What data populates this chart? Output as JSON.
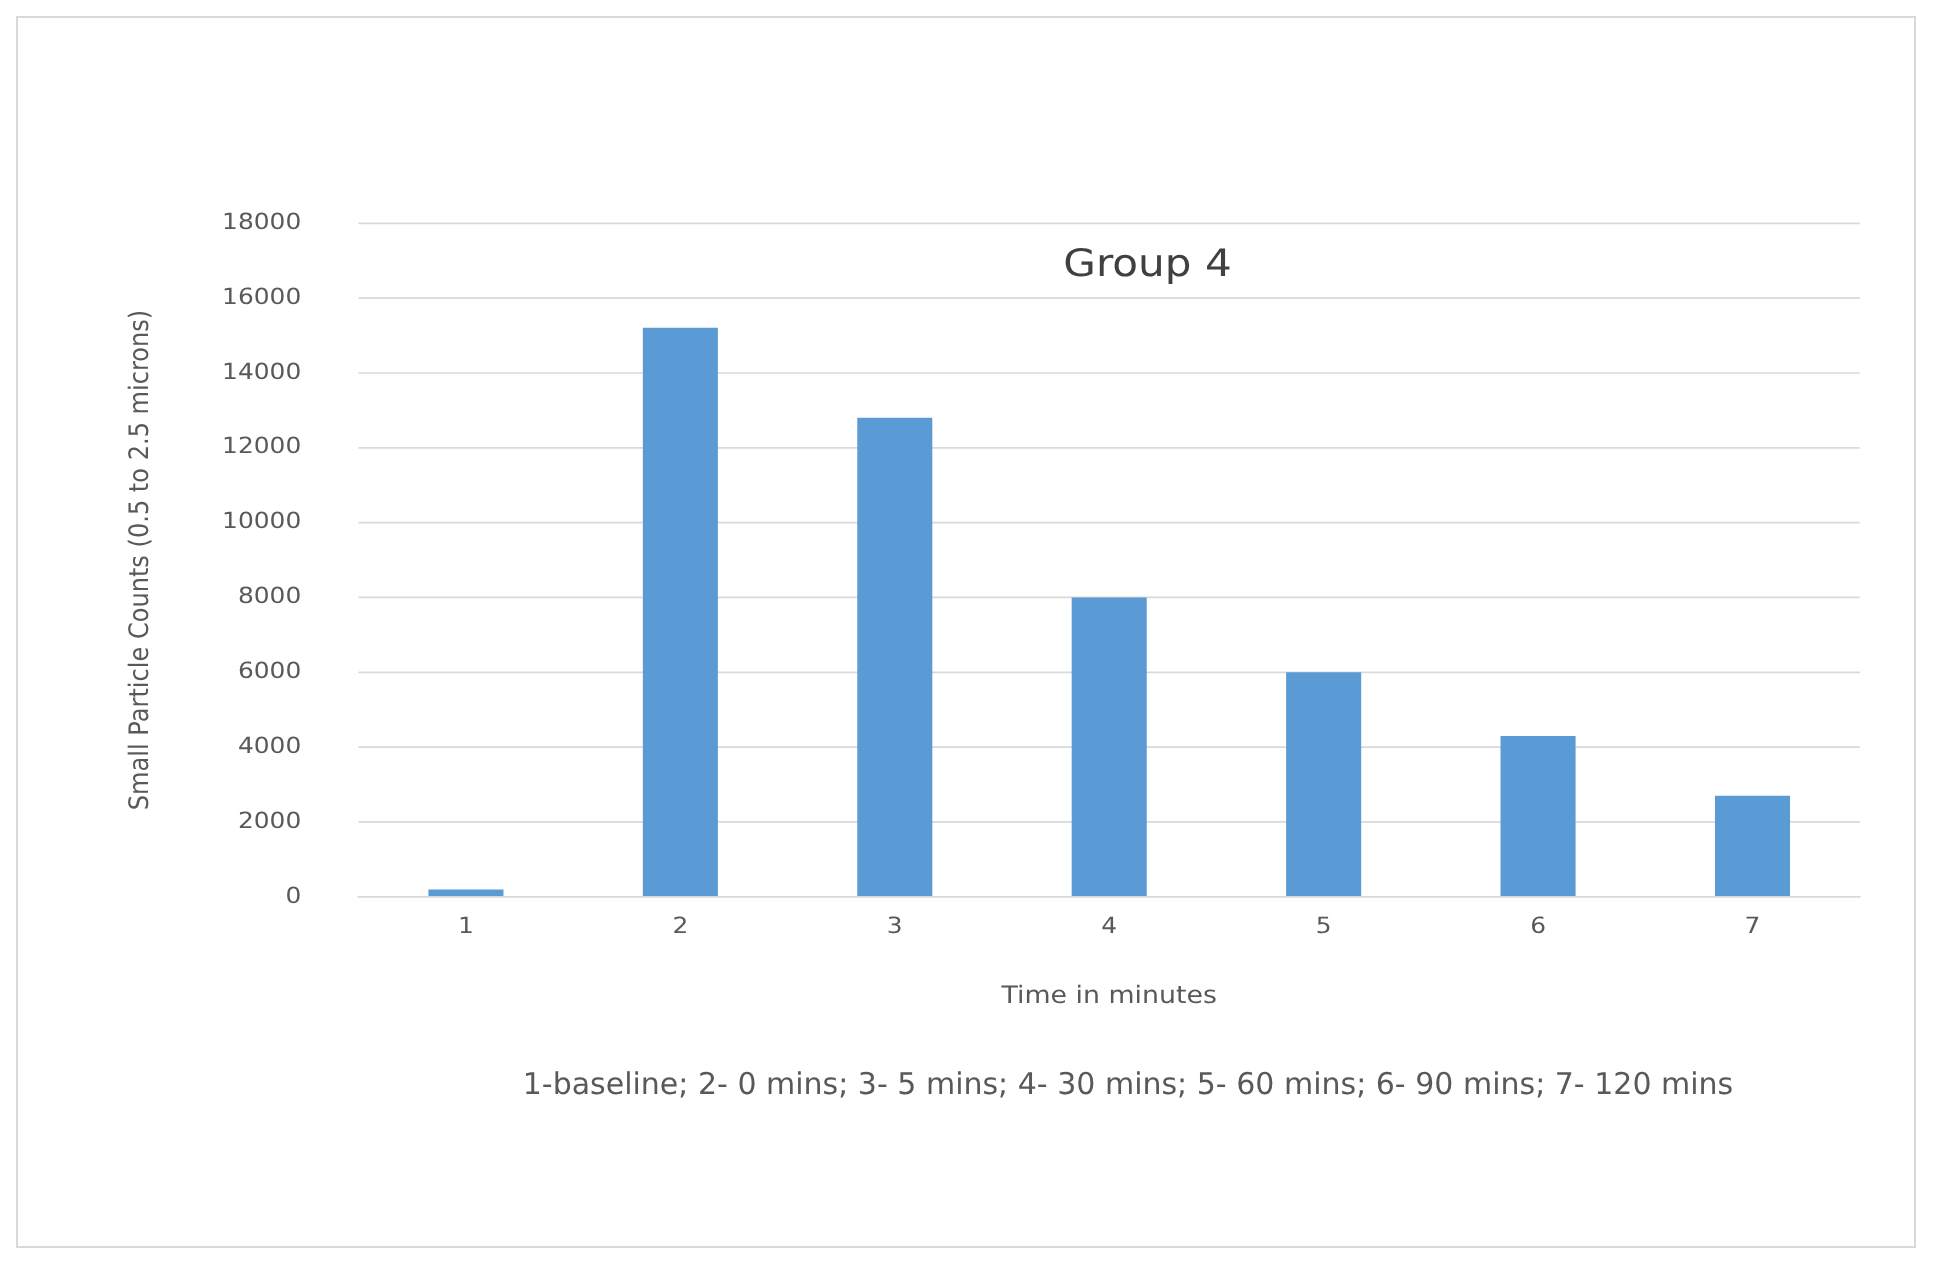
{
  "chart_data": {
    "type": "bar",
    "title": "Group 4",
    "xlabel": "Time in minutes",
    "ylabel": "Small Particle Counts (0.5 to 2.5 microns)",
    "categories": [
      "1",
      "2",
      "3",
      "4",
      "5",
      "6",
      "7"
    ],
    "values": [
      200,
      15200,
      12800,
      8000,
      6000,
      4300,
      2700
    ],
    "color": "#5b9bd5",
    "ylim": [
      0,
      18000
    ],
    "yticks": [
      0,
      2000,
      4000,
      6000,
      8000,
      10000,
      12000,
      14000,
      16000,
      18000
    ],
    "grid": "y",
    "annotations": [
      "1-baseline; 2- 0 mins; 3- 5 mins; 4- 30 mins; 5- 60 mins; 6- 90 mins; 7- 120 mins"
    ]
  }
}
